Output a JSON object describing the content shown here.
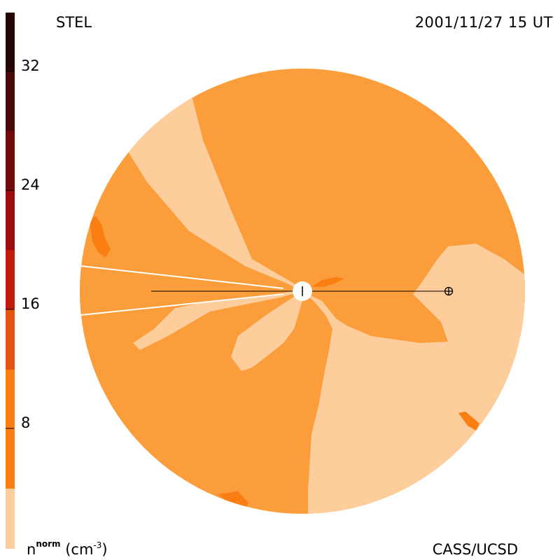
{
  "header": {
    "instrument": "STEL",
    "timestamp": "2001/11/27 15 UT"
  },
  "footer": {
    "credit": "CASS/UCSD"
  },
  "colorbar": {
    "quantity_label": "n",
    "quantity_superscript": "norm",
    "units_open": "(cm",
    "units_exponent": "-3",
    "units_close": ")",
    "ticks": [
      {
        "label": "32",
        "value": 32
      },
      {
        "label": "24",
        "value": 24
      },
      {
        "label": "16",
        "value": 16
      },
      {
        "label": "8",
        "value": 8
      }
    ],
    "range": [
      0,
      36
    ],
    "bands": [
      {
        "from": 0,
        "to": 4,
        "color": "#fdcd9c"
      },
      {
        "from": 4,
        "to": 12,
        "color": "#fb9d3a"
      },
      {
        "from": 12,
        "to": 20,
        "color": "#fb7e12"
      },
      {
        "from": 20,
        "to": 28,
        "color": "#e3540c"
      },
      {
        "from": 28,
        "to": 36,
        "color": "#c41a0c"
      }
    ],
    "upper_bands": [
      {
        "color": "#9c0c0c"
      },
      {
        "color": "#730a0a"
      },
      {
        "color": "#4a0a0a"
      },
      {
        "color": "#250707"
      }
    ]
  },
  "map": {
    "background_color": "#fb9d3a",
    "low_density_color": "#fdcd9c",
    "enhanced_color": "#fb7e12",
    "sun_marker": "sun-marker",
    "earth_marker": "earth-marker"
  }
}
